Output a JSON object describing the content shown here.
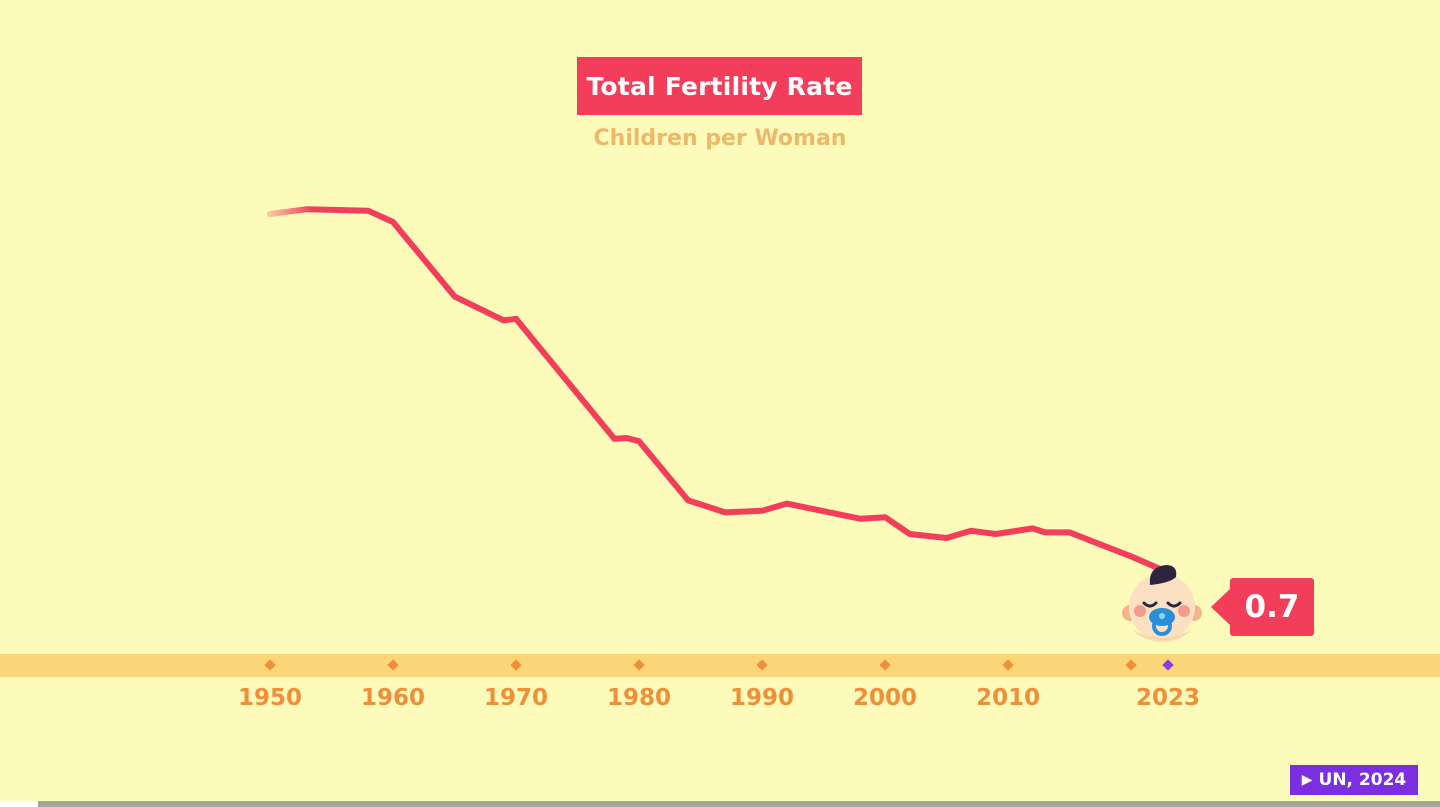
{
  "chart_data": {
    "type": "line",
    "title": "Total Fertility Rate",
    "subtitle": "Children per Woman",
    "xlabel": "",
    "ylabel": "Children per Woman",
    "xlim": [
      1950,
      2023
    ],
    "ylim": [
      0,
      6
    ],
    "grid": false,
    "tick_years": [
      1950,
      1960,
      1970,
      1980,
      1990,
      2000,
      2010,
      2020,
      2023
    ],
    "tick_labels": [
      "1950",
      "1960",
      "1970",
      "1980",
      "1990",
      "2000",
      "2010",
      "2023"
    ],
    "series": [
      {
        "name": "Total Fertility Rate",
        "color": "#f23e5a",
        "x": [
          1950,
          1953,
          1958,
          1960,
          1965,
          1969,
          1970,
          1978,
          1979,
          1980,
          1984,
          1987,
          1990,
          1992,
          1998,
          2000,
          2002,
          2005,
          2007,
          2009,
          2012,
          2013,
          2015,
          2020,
          2023
        ],
        "y": [
          5.2,
          5.26,
          5.24,
          5.1,
          4.17,
          3.87,
          3.89,
          2.39,
          2.4,
          2.36,
          1.62,
          1.47,
          1.49,
          1.58,
          1.39,
          1.41,
          1.2,
          1.15,
          1.24,
          1.2,
          1.27,
          1.22,
          1.22,
          0.92,
          0.72
        ]
      }
    ],
    "annotations": [
      {
        "x": 2023,
        "label": "0.7"
      }
    ]
  },
  "source": {
    "label": "UN, 2024",
    "icon": "play-icon"
  },
  "colors": {
    "background": "#fdfbb9",
    "accent": "#f23e5a",
    "subtitle": "#eeb76a",
    "timeline": "#fbd679",
    "tick": "#ef8f3a",
    "current_tick": "#8b3be8",
    "source": "#7b2fe0"
  }
}
